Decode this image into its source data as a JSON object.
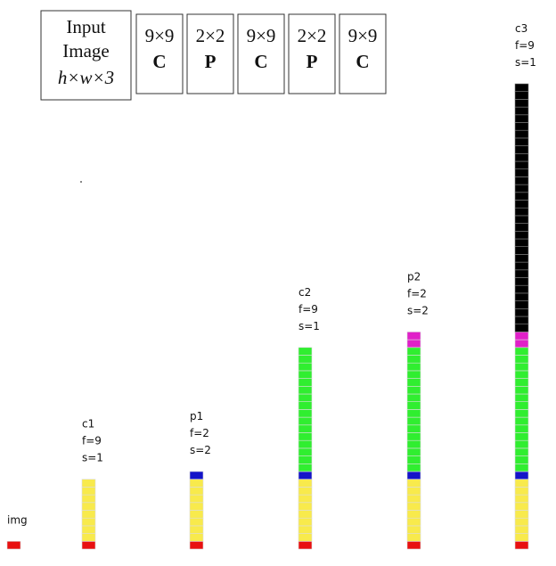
{
  "header": {
    "boxes": [
      {
        "lines": [
          "Input",
          "Image",
          "h×w×3"
        ]
      },
      {
        "lines": [
          "9×9",
          "C"
        ]
      },
      {
        "lines": [
          "2×2",
          "P"
        ]
      },
      {
        "lines": [
          "9×9",
          "C"
        ]
      },
      {
        "lines": [
          "2×2",
          "P"
        ]
      },
      {
        "lines": [
          "9×9",
          "C"
        ]
      }
    ]
  },
  "columns": [
    {
      "label": [
        "img"
      ],
      "segments": [
        {
          "color": "#e81010",
          "cells": 1
        }
      ]
    },
    {
      "label": [
        "c1",
        "f=9",
        "s=1"
      ],
      "segments": [
        {
          "color": "#e81010",
          "cells": 1
        },
        {
          "color": "#f8ea4c",
          "cells": 8
        }
      ]
    },
    {
      "label": [
        "p1",
        "f=2",
        "s=2"
      ],
      "segments": [
        {
          "color": "#e81010",
          "cells": 1
        },
        {
          "color": "#f8ea4c",
          "cells": 8
        },
        {
          "color": "#1414c8",
          "cells": 1
        }
      ]
    },
    {
      "label": [
        "c2",
        "f=9",
        "s=1"
      ],
      "segments": [
        {
          "color": "#e81010",
          "cells": 1
        },
        {
          "color": "#f8ea4c",
          "cells": 8
        },
        {
          "color": "#1414c8",
          "cells": 1
        },
        {
          "color": "#30ee30",
          "cells": 16
        }
      ]
    },
    {
      "label": [
        "p2",
        "f=2",
        "s=2"
      ],
      "segments": [
        {
          "color": "#e81010",
          "cells": 1
        },
        {
          "color": "#f8ea4c",
          "cells": 8
        },
        {
          "color": "#1414c8",
          "cells": 1
        },
        {
          "color": "#30ee30",
          "cells": 16
        },
        {
          "color": "#e020c8",
          "cells": 2
        }
      ]
    },
    {
      "label": [
        "c3",
        "f=9",
        "s=1"
      ],
      "segments": [
        {
          "color": "#e81010",
          "cells": 1
        },
        {
          "color": "#f8ea4c",
          "cells": 8
        },
        {
          "color": "#1414c8",
          "cells": 1
        },
        {
          "color": "#30ee30",
          "cells": 16
        },
        {
          "color": "#e020c8",
          "cells": 2
        },
        {
          "color": "#000000",
          "cells": 32
        }
      ]
    }
  ]
}
